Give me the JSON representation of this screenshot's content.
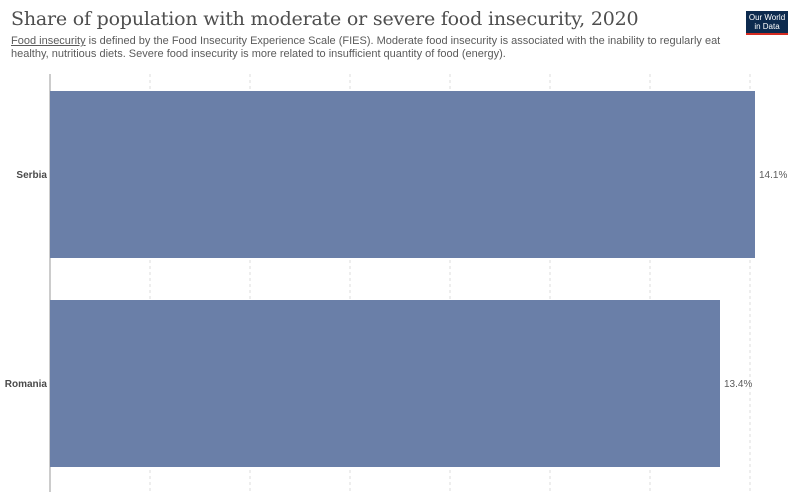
{
  "header": {
    "title": "Share of population with moderate or severe food insecurity, 2020",
    "subtitle_link": "Food insecurity",
    "subtitle_rest": " is defined by the Food Insecurity Experience Scale (FIES). Moderate food insecurity is associated with the inability to regularly eat healthy, nutritious diets. Severe food insecurity is more related to insufficient quantity of food (energy).",
    "logo_line1": "Our World",
    "logo_line2": "in Data"
  },
  "chart_data": {
    "type": "bar",
    "orientation": "horizontal",
    "categories": [
      "Serbia",
      "Romania"
    ],
    "values": [
      14.1,
      13.4
    ],
    "value_labels": [
      "14.1%",
      "13.4%"
    ],
    "xlim": [
      0,
      14.1
    ],
    "grid": true,
    "bar_color": "#6a7fa8"
  }
}
